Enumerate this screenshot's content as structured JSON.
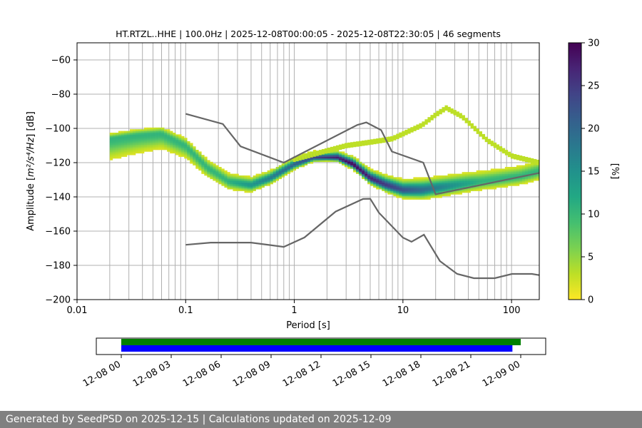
{
  "chart_data": [
    {
      "type": "heatmap",
      "title": "HT.RTZL..HHE | 100.0Hz | 2025-12-08T00:00:05 - 2025-12-08T22:30:05 | 46 segments",
      "xlabel": "Period [s]",
      "ylabel_prefix": "Amplitude [",
      "ylabel_math": "m²/s⁴/Hz",
      "ylabel_suffix": "] [dB]",
      "x_scale": "log",
      "xlim": [
        0.01,
        180
      ],
      "ylim": [
        -200,
        -50
      ],
      "x_ticks": [
        0.01,
        0.1,
        1,
        10,
        100
      ],
      "x_tick_labels": [
        "0.01",
        "0.1",
        "1",
        "10",
        "100"
      ],
      "y_ticks": [
        -200,
        -180,
        -160,
        -140,
        -120,
        -100,
        -80,
        -60
      ],
      "y_tick_labels": [
        "−200",
        "−180",
        "−160",
        "−140",
        "−120",
        "−100",
        "−80",
        "−60"
      ],
      "grid": "vertical lines at log-period ticks",
      "colorbar": {
        "label": "[%]",
        "min": 0,
        "max": 30,
        "ticks": [
          0,
          5,
          10,
          15,
          20,
          25,
          30
        ],
        "colormap": "viridis_r"
      },
      "series": [
        {
          "name": "",
          "color": "#666666",
          "role": "upper noise model",
          "x": [
            0.1,
            0.22,
            0.32,
            0.8,
            3.8,
            4.6,
            6.3,
            7.9,
            15.4,
            20,
            354.8
          ],
          "y": [
            -91.5,
            -97.4,
            -110.5,
            -120,
            -98,
            -96.5,
            -101,
            -113.5,
            -120,
            -138.5,
            -126
          ]
        },
        {
          "name": "",
          "color": "#666666",
          "role": "lower noise model",
          "x": [
            0.1,
            0.17,
            0.4,
            0.8,
            1.24,
            2.4,
            4.3,
            5.0,
            6.0,
            10,
            12,
            15.6,
            21.9,
            31.6,
            45,
            70,
            101,
            154,
            180
          ],
          "y": [
            -168,
            -166.7,
            -166.7,
            -169.2,
            -163.7,
            -148.6,
            -141.2,
            -141.1,
            -149.2,
            -163.8,
            -166.2,
            -162.1,
            -177.5,
            -185,
            -187.5,
            -187.5,
            -185,
            -185,
            -185.7
          ]
        }
      ],
      "psd_heatmap": {
        "x_range": [
          0.02,
          180
        ],
        "band_core": {
          "x": [
            0.02,
            0.035,
            0.06,
            0.1,
            0.16,
            0.25,
            0.4,
            0.6,
            1.0,
            1.5,
            2.5,
            3.5,
            5,
            7,
            10,
            15,
            25,
            40,
            70,
            120,
            180
          ],
          "y": [
            -106,
            -104,
            -103,
            -110,
            -123,
            -131,
            -133,
            -129,
            -121,
            -117,
            -117,
            -121,
            -129,
            -133,
            -136,
            -136,
            -134,
            -132,
            -130,
            -128,
            -125
          ]
        },
        "band_spread_db": [
          {
            "x": 0.02,
            "below": 20,
            "above": 5
          },
          {
            "x": 0.2,
            "below": 8,
            "above": 8
          },
          {
            "x": 2,
            "below": 3,
            "above": 5
          },
          {
            "x": 15,
            "below": 8,
            "above": 10
          },
          {
            "x": 180,
            "below": 8,
            "above": 10
          }
        ],
        "max_percent_near": {
          "x": 3.5,
          "y": -121,
          "percent": 30
        },
        "upper_spur": {
          "x": [
            1,
            2,
            3,
            5,
            8,
            15,
            20,
            25,
            35,
            60,
            100,
            180
          ],
          "y": [
            -118,
            -113,
            -110,
            -108,
            -106,
            -98,
            -92,
            -88,
            -93,
            -107,
            -116,
            -120
          ]
        }
      }
    },
    {
      "type": "timeline",
      "x_ticks": [
        "12-08 00",
        "12-08 03",
        "12-08 06",
        "12-08 09",
        "12-08 12",
        "12-08 15",
        "12-08 18",
        "12-08 21",
        "12-09 00"
      ],
      "x_range_hours": [
        -1.5,
        25.5
      ],
      "bars": [
        {
          "name": "",
          "color": "#008000",
          "start_hours": 0.0,
          "end_hours": 24.0
        },
        {
          "name": "",
          "color": "#0000ff",
          "start_hours": 0.0,
          "end_hours": 23.5
        }
      ]
    }
  ],
  "footer": {
    "text": "Generated by SeedPSD on 2025-12-15 | Calculations updated on 2025-12-09"
  }
}
